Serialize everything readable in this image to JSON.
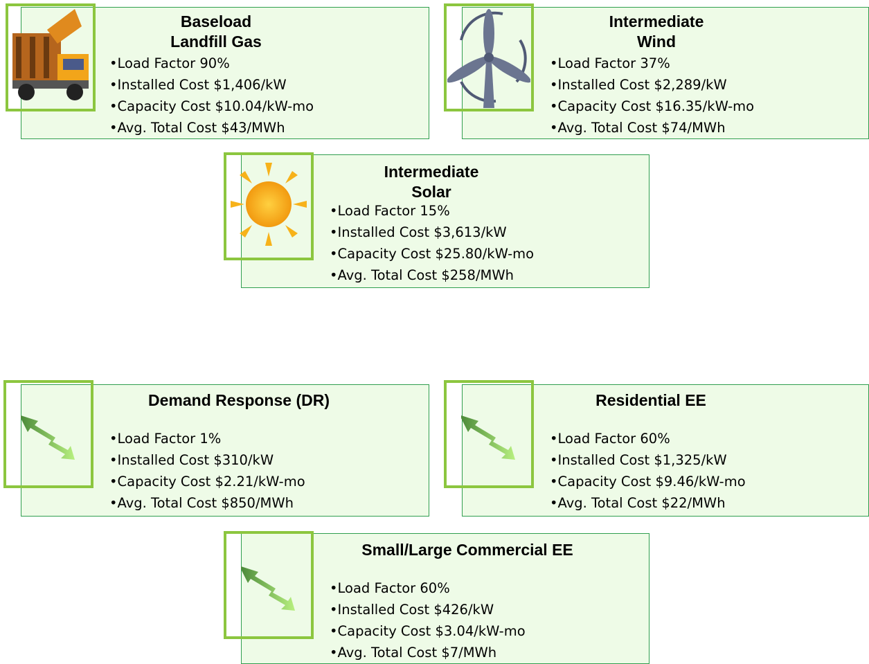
{
  "cards": [
    {
      "title": [
        "Baseload",
        "Landfill Gas"
      ],
      "items": [
        "Load Factor 90%",
        "Installed Cost $1,406/kW",
        "Capacity Cost $10.04/kW-mo",
        "Avg. Total Cost $43/MWh"
      ]
    },
    {
      "title": [
        "Intermediate",
        "Wind"
      ],
      "items": [
        "Load Factor 37%",
        "Installed Cost $2,289/kW",
        "Capacity Cost $16.35/kW-mo",
        "Avg. Total Cost $74/MWh"
      ]
    },
    {
      "title": [
        "Intermediate",
        "Solar"
      ],
      "items": [
        "Load Factor 15%",
        "Installed Cost $3,613/kW",
        "Capacity Cost $25.80/kW-mo",
        "Avg. Total Cost $258/MWh"
      ]
    },
    {
      "title": [
        "Demand Response (DR)"
      ],
      "items": [
        "Load Factor 1%",
        "Installed Cost $310/kW",
        "Capacity Cost $2.21/kW-mo",
        "Avg. Total Cost $850/MWh"
      ]
    },
    {
      "title": [
        "Residential EE"
      ],
      "items": [
        "Load Factor 60%",
        "Installed Cost $1,325/kW",
        "Capacity Cost $9.46/kW-mo",
        "Avg. Total Cost $22/MWh"
      ]
    },
    {
      "title": [
        "Small/Large Commercial EE"
      ],
      "items": [
        "Load Factor 60%",
        "Installed Cost $426/kW",
        "Capacity Cost $3.04/kW-mo",
        "Avg. Total Cost $7/MWh"
      ]
    }
  ]
}
